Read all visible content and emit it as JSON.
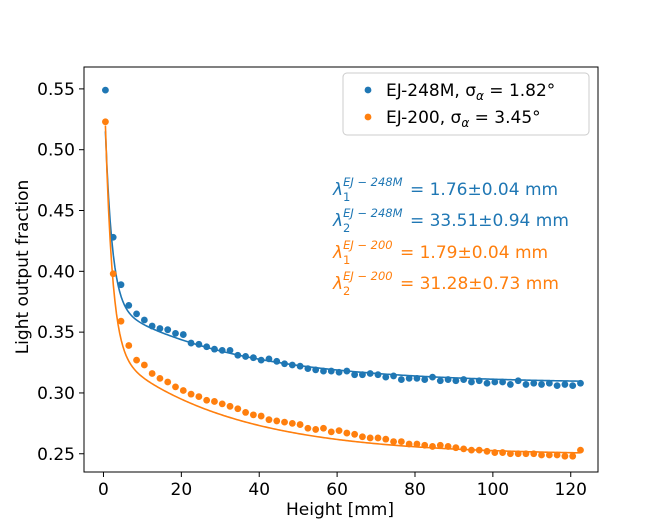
{
  "chart_data": {
    "type": "scatter",
    "title": "",
    "xlabel": "Height [mm]",
    "ylabel": "Light output fraction",
    "xlim": [
      -5,
      127
    ],
    "ylim": [
      0.235,
      0.568
    ],
    "x_ticks": [
      0,
      20,
      40,
      60,
      80,
      100,
      120
    ],
    "x_tick_labels": [
      "0",
      "20",
      "40",
      "60",
      "80",
      "100",
      "120"
    ],
    "y_ticks": [
      0.25,
      0.3,
      0.35,
      0.4,
      0.45,
      0.5,
      0.55
    ],
    "y_tick_labels": [
      "0.25",
      "0.30",
      "0.35",
      "0.40",
      "0.45",
      "0.50",
      "0.55"
    ],
    "grid": false,
    "legend_position": "top-right",
    "series": [
      {
        "name": "EJ-248M",
        "legend_label": "EJ-248M, σ",
        "legend_sub": "α",
        "legend_value": " = 1.82°",
        "color": "#1f77b4",
        "fit": {
          "c": 0.308,
          "A1": 0.19,
          "l1": 1.76,
          "A2": 0.065,
          "l2": 33.51
        },
        "points": [
          [
            0.5,
            0.549
          ],
          [
            2.5,
            0.428
          ],
          [
            4.5,
            0.389
          ],
          [
            6.5,
            0.372
          ],
          [
            8.5,
            0.365
          ],
          [
            10.5,
            0.36
          ],
          [
            12.5,
            0.355
          ],
          [
            14.5,
            0.353
          ],
          [
            16.5,
            0.352
          ],
          [
            18.5,
            0.349
          ],
          [
            20.5,
            0.348
          ],
          [
            22.5,
            0.341
          ],
          [
            24.5,
            0.34
          ],
          [
            26.5,
            0.338
          ],
          [
            28.5,
            0.336
          ],
          [
            30.5,
            0.335
          ],
          [
            32.5,
            0.335
          ],
          [
            34.5,
            0.331
          ],
          [
            36.5,
            0.33
          ],
          [
            38.5,
            0.329
          ],
          [
            40.5,
            0.327
          ],
          [
            42.5,
            0.328
          ],
          [
            44.5,
            0.326
          ],
          [
            46.5,
            0.324
          ],
          [
            48.5,
            0.323
          ],
          [
            50.5,
            0.322
          ],
          [
            52.5,
            0.32
          ],
          [
            54.5,
            0.319
          ],
          [
            56.5,
            0.318
          ],
          [
            58.5,
            0.318
          ],
          [
            60.5,
            0.317
          ],
          [
            62.5,
            0.318
          ],
          [
            64.5,
            0.315
          ],
          [
            66.5,
            0.315
          ],
          [
            68.5,
            0.316
          ],
          [
            70.5,
            0.315
          ],
          [
            72.5,
            0.313
          ],
          [
            74.5,
            0.314
          ],
          [
            76.5,
            0.311
          ],
          [
            78.5,
            0.312
          ],
          [
            80.5,
            0.312
          ],
          [
            82.5,
            0.311
          ],
          [
            84.5,
            0.313
          ],
          [
            86.5,
            0.31
          ],
          [
            88.5,
            0.311
          ],
          [
            90.5,
            0.31
          ],
          [
            92.5,
            0.311
          ],
          [
            94.5,
            0.309
          ],
          [
            96.5,
            0.31
          ],
          [
            98.5,
            0.308
          ],
          [
            100.5,
            0.309
          ],
          [
            102.5,
            0.309
          ],
          [
            104.5,
            0.307
          ],
          [
            106.5,
            0.31
          ],
          [
            108.5,
            0.307
          ],
          [
            110.5,
            0.308
          ],
          [
            112.5,
            0.307
          ],
          [
            114.5,
            0.308
          ],
          [
            116.5,
            0.306
          ],
          [
            118.5,
            0.307
          ],
          [
            120.5,
            0.306
          ],
          [
            122.5,
            0.308
          ]
        ]
      },
      {
        "name": "EJ-200",
        "legend_label": "EJ-200, σ",
        "legend_sub": "α",
        "legend_value": " = 3.45°",
        "color": "#ff7f0e",
        "fit": {
          "c": 0.249,
          "A1": 0.245,
          "l1": 1.79,
          "A2": 0.087,
          "l2": 31.28
        },
        "points": [
          [
            0.5,
            0.523
          ],
          [
            2.5,
            0.398
          ],
          [
            4.5,
            0.359
          ],
          [
            6.5,
            0.339
          ],
          [
            8.5,
            0.327
          ],
          [
            10.5,
            0.323
          ],
          [
            12.5,
            0.316
          ],
          [
            14.5,
            0.312
          ],
          [
            16.5,
            0.309
          ],
          [
            18.5,
            0.305
          ],
          [
            20.5,
            0.302
          ],
          [
            22.5,
            0.299
          ],
          [
            24.5,
            0.297
          ],
          [
            26.5,
            0.294
          ],
          [
            28.5,
            0.293
          ],
          [
            30.5,
            0.291
          ],
          [
            32.5,
            0.289
          ],
          [
            34.5,
            0.287
          ],
          [
            36.5,
            0.284
          ],
          [
            38.5,
            0.282
          ],
          [
            40.5,
            0.281
          ],
          [
            42.5,
            0.278
          ],
          [
            44.5,
            0.277
          ],
          [
            46.5,
            0.276
          ],
          [
            48.5,
            0.275
          ],
          [
            50.5,
            0.274
          ],
          [
            52.5,
            0.271
          ],
          [
            54.5,
            0.27
          ],
          [
            56.5,
            0.271
          ],
          [
            58.5,
            0.268
          ],
          [
            60.5,
            0.269
          ],
          [
            62.5,
            0.267
          ],
          [
            64.5,
            0.266
          ],
          [
            66.5,
            0.264
          ],
          [
            68.5,
            0.263
          ],
          [
            70.5,
            0.263
          ],
          [
            72.5,
            0.262
          ],
          [
            74.5,
            0.26
          ],
          [
            76.5,
            0.26
          ],
          [
            78.5,
            0.258
          ],
          [
            80.5,
            0.258
          ],
          [
            82.5,
            0.257
          ],
          [
            84.5,
            0.256
          ],
          [
            86.5,
            0.257
          ],
          [
            88.5,
            0.256
          ],
          [
            90.5,
            0.255
          ],
          [
            92.5,
            0.254
          ],
          [
            94.5,
            0.253
          ],
          [
            96.5,
            0.253
          ],
          [
            98.5,
            0.252
          ],
          [
            100.5,
            0.251
          ],
          [
            102.5,
            0.251
          ],
          [
            104.5,
            0.25
          ],
          [
            106.5,
            0.25
          ],
          [
            108.5,
            0.25
          ],
          [
            110.5,
            0.25
          ],
          [
            112.5,
            0.249
          ],
          [
            114.5,
            0.249
          ],
          [
            116.5,
            0.249
          ],
          [
            118.5,
            0.248
          ],
          [
            120.5,
            0.248
          ],
          [
            122.5,
            0.253
          ]
        ]
      }
    ],
    "annotations": [
      {
        "base": "λ",
        "sub": "1",
        "sup": "EJ − 248M",
        "text": " = 1.76±0.04 mm",
        "color": "#1f77b4"
      },
      {
        "base": "λ",
        "sub": "2",
        "sup": "EJ − 248M",
        "text": " = 33.51±0.94 mm",
        "color": "#1f77b4"
      },
      {
        "base": "λ",
        "sub": "1",
        "sup": "EJ − 200",
        "text": " = 1.79±0.04 mm",
        "color": "#ff7f0e"
      },
      {
        "base": "λ",
        "sub": "2",
        "sup": "EJ − 200",
        "text": " = 31.28±0.73 mm",
        "color": "#ff7f0e"
      }
    ]
  }
}
